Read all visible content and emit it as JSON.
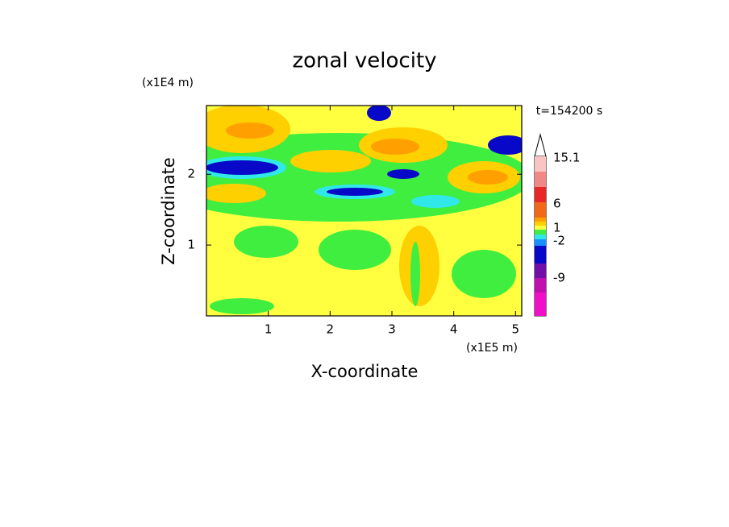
{
  "chart_data": {
    "type": "contour",
    "title": "zonal velocity",
    "x_label": "X-coordinate",
    "y_label": "Z-coordinate",
    "x_unit": "(x1E5 m)",
    "y_unit": "(x1E4 m)",
    "time_label": "t=154200 s",
    "xlim": [
      0,
      5.1
    ],
    "ylim": [
      0,
      2.97
    ],
    "xticks": [
      1,
      2,
      3,
      4,
      5
    ],
    "yticks": [
      1,
      2
    ],
    "colorbar": {
      "colors": [
        "#ffffff",
        "#f8c4c4",
        "#f08888",
        "#e82828",
        "#f06818",
        "#ffa000",
        "#ffd000",
        "#ffff40",
        "#40ee40",
        "#30e8e8",
        "#1890ff",
        "#0808c8",
        "#7010a8",
        "#c010b0",
        "#f010c8"
      ],
      "ticks": [
        15.1,
        6,
        1,
        -2,
        -9
      ]
    }
  }
}
